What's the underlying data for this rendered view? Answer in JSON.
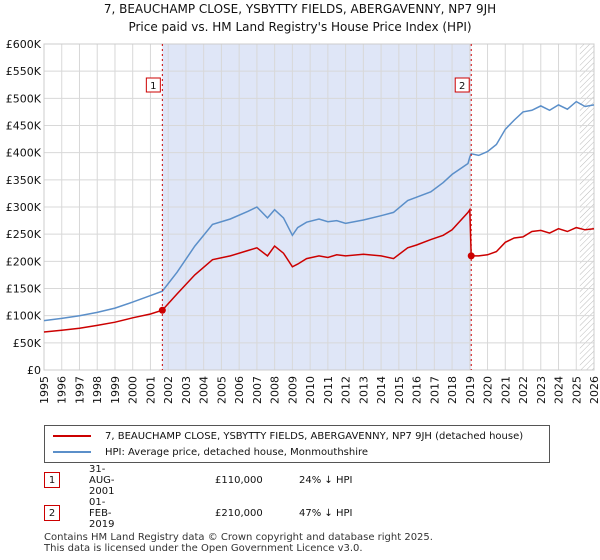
{
  "header": {
    "title": "7, BEAUCHAMP CLOSE, YSBYTTY FIELDS, ABERGAVENNY, NP7 9JH",
    "subtitle": "Price paid vs. HM Land Registry's House Price Index (HPI)"
  },
  "colors": {
    "property": "#cc0000",
    "hpi": "#5b8fc9",
    "shade": "#dfe6f7",
    "grid": "#d8d8d8",
    "marker_border": "#cc0000"
  },
  "chart_data": {
    "type": "line",
    "title": "Price paid vs. HM Land Registry's House Price Index (HPI)",
    "xlabel": "",
    "ylabel": "",
    "xlim": [
      1995,
      2026
    ],
    "ylim": [
      0,
      600000
    ],
    "y_ticks": [
      0,
      50000,
      100000,
      150000,
      200000,
      250000,
      300000,
      350000,
      400000,
      450000,
      500000,
      550000,
      600000
    ],
    "y_tick_labels": [
      "£0",
      "£50K",
      "£100K",
      "£150K",
      "£200K",
      "£250K",
      "£300K",
      "£350K",
      "£400K",
      "£450K",
      "£500K",
      "£550K",
      "£600K"
    ],
    "x_ticks": [
      1995,
      1996,
      1997,
      1998,
      1999,
      2000,
      2001,
      2002,
      2003,
      2004,
      2005,
      2006,
      2007,
      2008,
      2009,
      2010,
      2011,
      2012,
      2013,
      2014,
      2015,
      2016,
      2017,
      2018,
      2019,
      2020,
      2021,
      2022,
      2023,
      2024,
      2025,
      2026
    ],
    "x_tick_labels": [
      "1995",
      "1996",
      "1997",
      "1998",
      "1999",
      "2000",
      "2001",
      "2002",
      "2003",
      "2004",
      "2005",
      "2006",
      "2007",
      "2008",
      "2009",
      "2010",
      "2011",
      "2012",
      "2013",
      "2014",
      "2015",
      "2016",
      "2017",
      "2018",
      "2019",
      "2020",
      "2021",
      "2022",
      "2023",
      "2024",
      "2025",
      "2026"
    ],
    "shaded_range": [
      2001.67,
      2019.08
    ],
    "projection_from": 2025.2,
    "series": [
      {
        "name": "7, BEAUCHAMP CLOSE, YSBYTTY FIELDS, ABERGAVENNY, NP7 9JH (detached house)",
        "x": [
          1995.0,
          1996.0,
          1997.0,
          1998.0,
          1999.0,
          2000.0,
          2001.0,
          2001.67,
          2002.5,
          2003.5,
          2004.5,
          2005.5,
          2006.5,
          2007.0,
          2007.6,
          2008.0,
          2008.5,
          2009.0,
          2009.3,
          2009.8,
          2010.5,
          2011.0,
          2011.5,
          2012.0,
          2013.0,
          2014.0,
          2014.7,
          2015.5,
          2016.0,
          2016.8,
          2017.5,
          2018.0,
          2018.9,
          2019.0,
          2019.08,
          2019.5,
          2020.0,
          2020.5,
          2021.0,
          2021.5,
          2022.0,
          2022.5,
          2023.0,
          2023.5,
          2024.0,
          2024.5,
          2025.0,
          2025.5,
          2026.0
        ],
        "values": [
          70000,
          73000,
          77000,
          82000,
          88000,
          96000,
          103000,
          110000,
          140000,
          175000,
          203000,
          210000,
          220000,
          225000,
          210000,
          228000,
          215000,
          190000,
          195000,
          205000,
          210000,
          207000,
          212000,
          210000,
          213000,
          210000,
          205000,
          225000,
          230000,
          240000,
          248000,
          258000,
          290000,
          295000,
          210000,
          210000,
          212000,
          218000,
          235000,
          243000,
          245000,
          255000,
          257000,
          252000,
          260000,
          255000,
          262000,
          258000,
          260000
        ]
      },
      {
        "name": "HPI: Average price, detached house, Monmouthshire",
        "x": [
          1995.0,
          1996.0,
          1997.0,
          1998.0,
          1999.0,
          2000.0,
          2001.0,
          2001.67,
          2002.5,
          2003.5,
          2004.5,
          2005.5,
          2006.5,
          2007.0,
          2007.6,
          2008.0,
          2008.5,
          2009.0,
          2009.3,
          2009.8,
          2010.5,
          2011.0,
          2011.5,
          2012.0,
          2013.0,
          2014.0,
          2014.7,
          2015.5,
          2016.0,
          2016.8,
          2017.5,
          2018.0,
          2018.9,
          2019.0,
          2019.08,
          2019.5,
          2020.0,
          2020.5,
          2021.0,
          2021.5,
          2022.0,
          2022.5,
          2023.0,
          2023.5,
          2024.0,
          2024.5,
          2025.0,
          2025.5,
          2026.0
        ],
        "values": [
          91000,
          95000,
          100000,
          106000,
          114000,
          125000,
          137000,
          145000,
          180000,
          228000,
          268000,
          278000,
          292000,
          300000,
          280000,
          295000,
          280000,
          248000,
          262000,
          272000,
          278000,
          273000,
          275000,
          270000,
          276000,
          284000,
          290000,
          312000,
          318000,
          328000,
          345000,
          360000,
          380000,
          392000,
          398000,
          395000,
          402000,
          415000,
          443000,
          460000,
          475000,
          478000,
          486000,
          478000,
          488000,
          480000,
          494000,
          485000,
          488000
        ]
      }
    ],
    "annotations": [
      {
        "label": "1",
        "x": 2001.67,
        "y": 110000
      },
      {
        "label": "2",
        "x": 2019.08,
        "y": 210000
      }
    ]
  },
  "legend": {
    "property_label": "7, BEAUCHAMP CLOSE, YSBYTTY FIELDS, ABERGAVENNY, NP7 9JH (detached house)",
    "hpi_label": "HPI: Average price, detached house, Monmouthshire"
  },
  "transactions": [
    {
      "num": "1",
      "date": "31-AUG-2001",
      "price": "£110,000",
      "hpi": "24% ↓ HPI"
    },
    {
      "num": "2",
      "date": "01-FEB-2019",
      "price": "£210,000",
      "hpi": "47% ↓ HPI"
    }
  ],
  "footer": {
    "line1": "Contains HM Land Registry data © Crown copyright and database right 2025.",
    "line2": "This data is licensed under the Open Government Licence v3.0."
  }
}
